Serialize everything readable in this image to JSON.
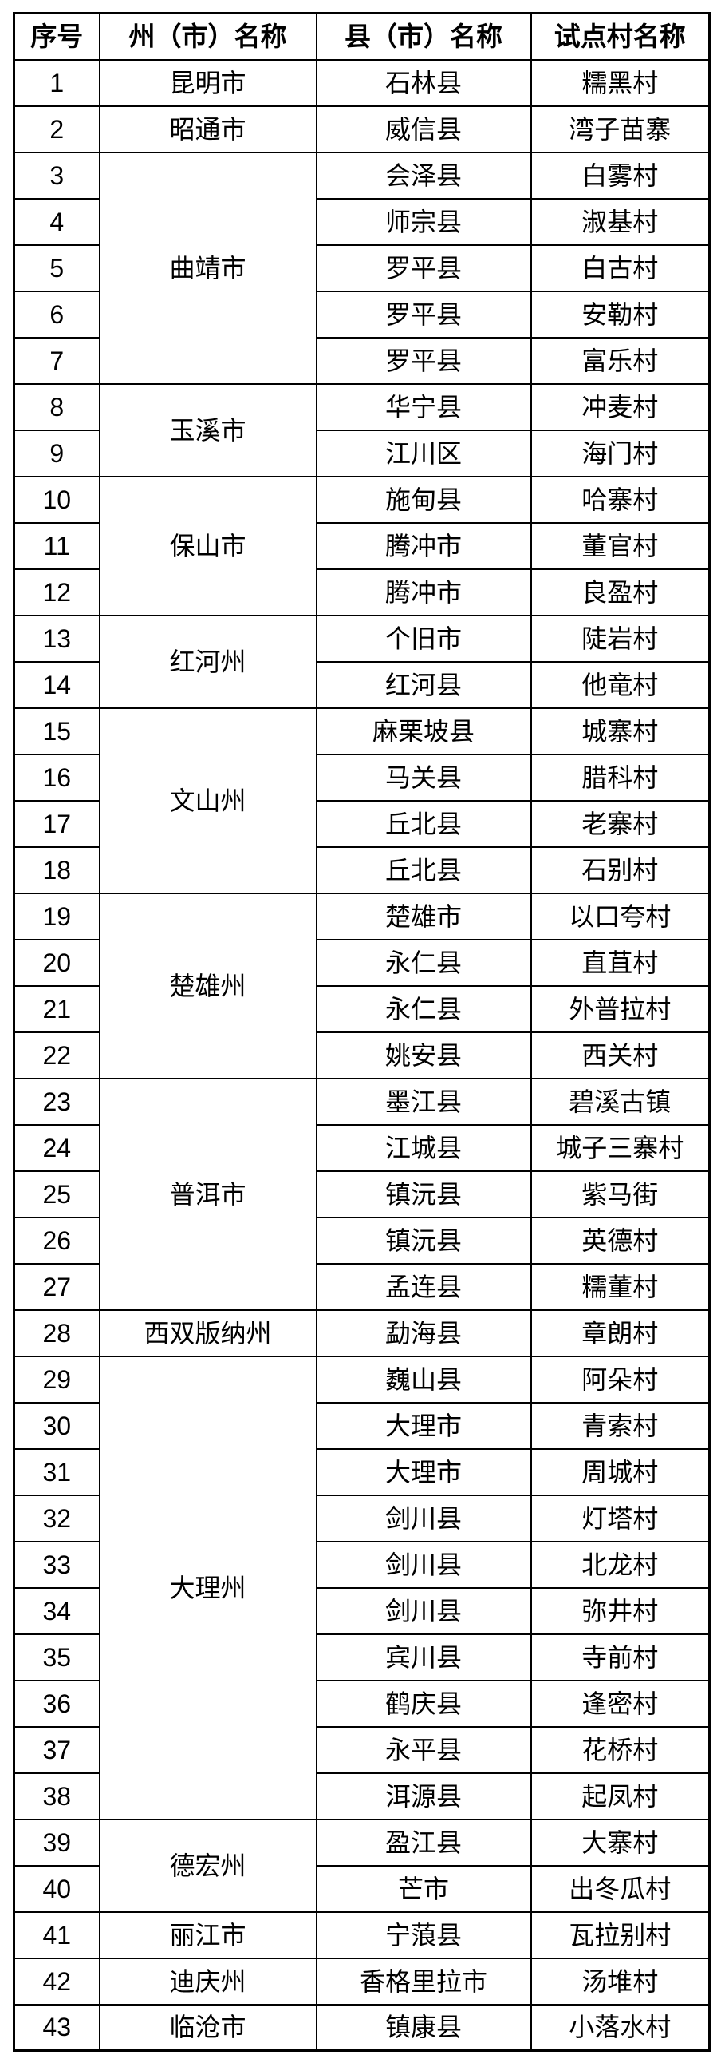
{
  "document": {
    "background_color": "#ffffff",
    "border_color": "#000000",
    "text_color": "#000000"
  },
  "table": {
    "columns": [
      {
        "key": "no",
        "label": "序号"
      },
      {
        "key": "prefecture",
        "label": "州（市）名称"
      },
      {
        "key": "county",
        "label": "县（市）名称"
      },
      {
        "key": "village",
        "label": "试点村名称"
      }
    ],
    "rows": [
      {
        "no": "1",
        "prefecture": "昆明市",
        "prefecture_rowspan": 1,
        "county": "石林县",
        "village": "糯黑村"
      },
      {
        "no": "2",
        "prefecture": "昭通市",
        "prefecture_rowspan": 1,
        "county": "威信县",
        "village": "湾子苗寨"
      },
      {
        "no": "3",
        "prefecture": "曲靖市",
        "prefecture_rowspan": 5,
        "county": "会泽县",
        "village": "白雾村"
      },
      {
        "no": "4",
        "county": "师宗县",
        "village": "淑基村"
      },
      {
        "no": "5",
        "county": "罗平县",
        "village": "白古村"
      },
      {
        "no": "6",
        "county": "罗平县",
        "village": "安勒村"
      },
      {
        "no": "7",
        "county": "罗平县",
        "village": "富乐村"
      },
      {
        "no": "8",
        "prefecture": "玉溪市",
        "prefecture_rowspan": 2,
        "county": "华宁县",
        "village": "冲麦村"
      },
      {
        "no": "9",
        "county": "江川区",
        "village": "海门村"
      },
      {
        "no": "10",
        "prefecture": "保山市",
        "prefecture_rowspan": 3,
        "county": "施甸县",
        "village": "哈寨村"
      },
      {
        "no": "11",
        "county": "腾冲市",
        "village": "董官村"
      },
      {
        "no": "12",
        "county": "腾冲市",
        "village": "良盈村"
      },
      {
        "no": "13",
        "prefecture": "红河州",
        "prefecture_rowspan": 2,
        "county": "个旧市",
        "village": "陡岩村"
      },
      {
        "no": "14",
        "county": "红河县",
        "village": "他竜村"
      },
      {
        "no": "15",
        "prefecture": "文山州",
        "prefecture_rowspan": 4,
        "county": "麻栗坡县",
        "village": "城寨村"
      },
      {
        "no": "16",
        "county": "马关县",
        "village": "腊科村"
      },
      {
        "no": "17",
        "county": "丘北县",
        "village": "老寨村"
      },
      {
        "no": "18",
        "county": "丘北县",
        "village": "石别村"
      },
      {
        "no": "19",
        "prefecture": "楚雄州",
        "prefecture_rowspan": 4,
        "county": "楚雄市",
        "village": "以口夸村"
      },
      {
        "no": "20",
        "county": "永仁县",
        "village": "直苴村"
      },
      {
        "no": "21",
        "county": "永仁县",
        "village": "外普拉村"
      },
      {
        "no": "22",
        "county": "姚安县",
        "village": "西关村"
      },
      {
        "no": "23",
        "prefecture": "普洱市",
        "prefecture_rowspan": 5,
        "county": "墨江县",
        "village": "碧溪古镇"
      },
      {
        "no": "24",
        "county": "江城县",
        "village": "城子三寨村"
      },
      {
        "no": "25",
        "county": "镇沅县",
        "village": "紫马街"
      },
      {
        "no": "26",
        "county": "镇沅县",
        "village": "英德村"
      },
      {
        "no": "27",
        "county": "孟连县",
        "village": "糯董村"
      },
      {
        "no": "28",
        "prefecture": "西双版纳州",
        "prefecture_rowspan": 1,
        "county": "勐海县",
        "village": "章朗村"
      },
      {
        "no": "29",
        "prefecture": "大理州",
        "prefecture_rowspan": 10,
        "county": "巍山县",
        "village": "阿朵村"
      },
      {
        "no": "30",
        "county": "大理市",
        "village": "青索村"
      },
      {
        "no": "31",
        "county": "大理市",
        "village": "周城村"
      },
      {
        "no": "32",
        "county": "剑川县",
        "village": "灯塔村"
      },
      {
        "no": "33",
        "county": "剑川县",
        "village": "北龙村"
      },
      {
        "no": "34",
        "county": "剑川县",
        "village": "弥井村"
      },
      {
        "no": "35",
        "county": "宾川县",
        "village": "寺前村"
      },
      {
        "no": "36",
        "county": "鹤庆县",
        "village": "逢密村"
      },
      {
        "no": "37",
        "county": "永平县",
        "village": "花桥村"
      },
      {
        "no": "38",
        "county": "洱源县",
        "village": "起凤村"
      },
      {
        "no": "39",
        "prefecture": "德宏州",
        "prefecture_rowspan": 2,
        "county": "盈江县",
        "village": "大寨村"
      },
      {
        "no": "40",
        "county": "芒市",
        "village": "出冬瓜村"
      },
      {
        "no": "41",
        "prefecture": "丽江市",
        "prefecture_rowspan": 1,
        "county": "宁蒗县",
        "village": "瓦拉别村"
      },
      {
        "no": "42",
        "prefecture": "迪庆州",
        "prefecture_rowspan": 1,
        "county": "香格里拉市",
        "village": "汤堆村"
      },
      {
        "no": "43",
        "prefecture": "临沧市",
        "prefecture_rowspan": 1,
        "county": "镇康县",
        "village": "小落水村"
      }
    ]
  }
}
